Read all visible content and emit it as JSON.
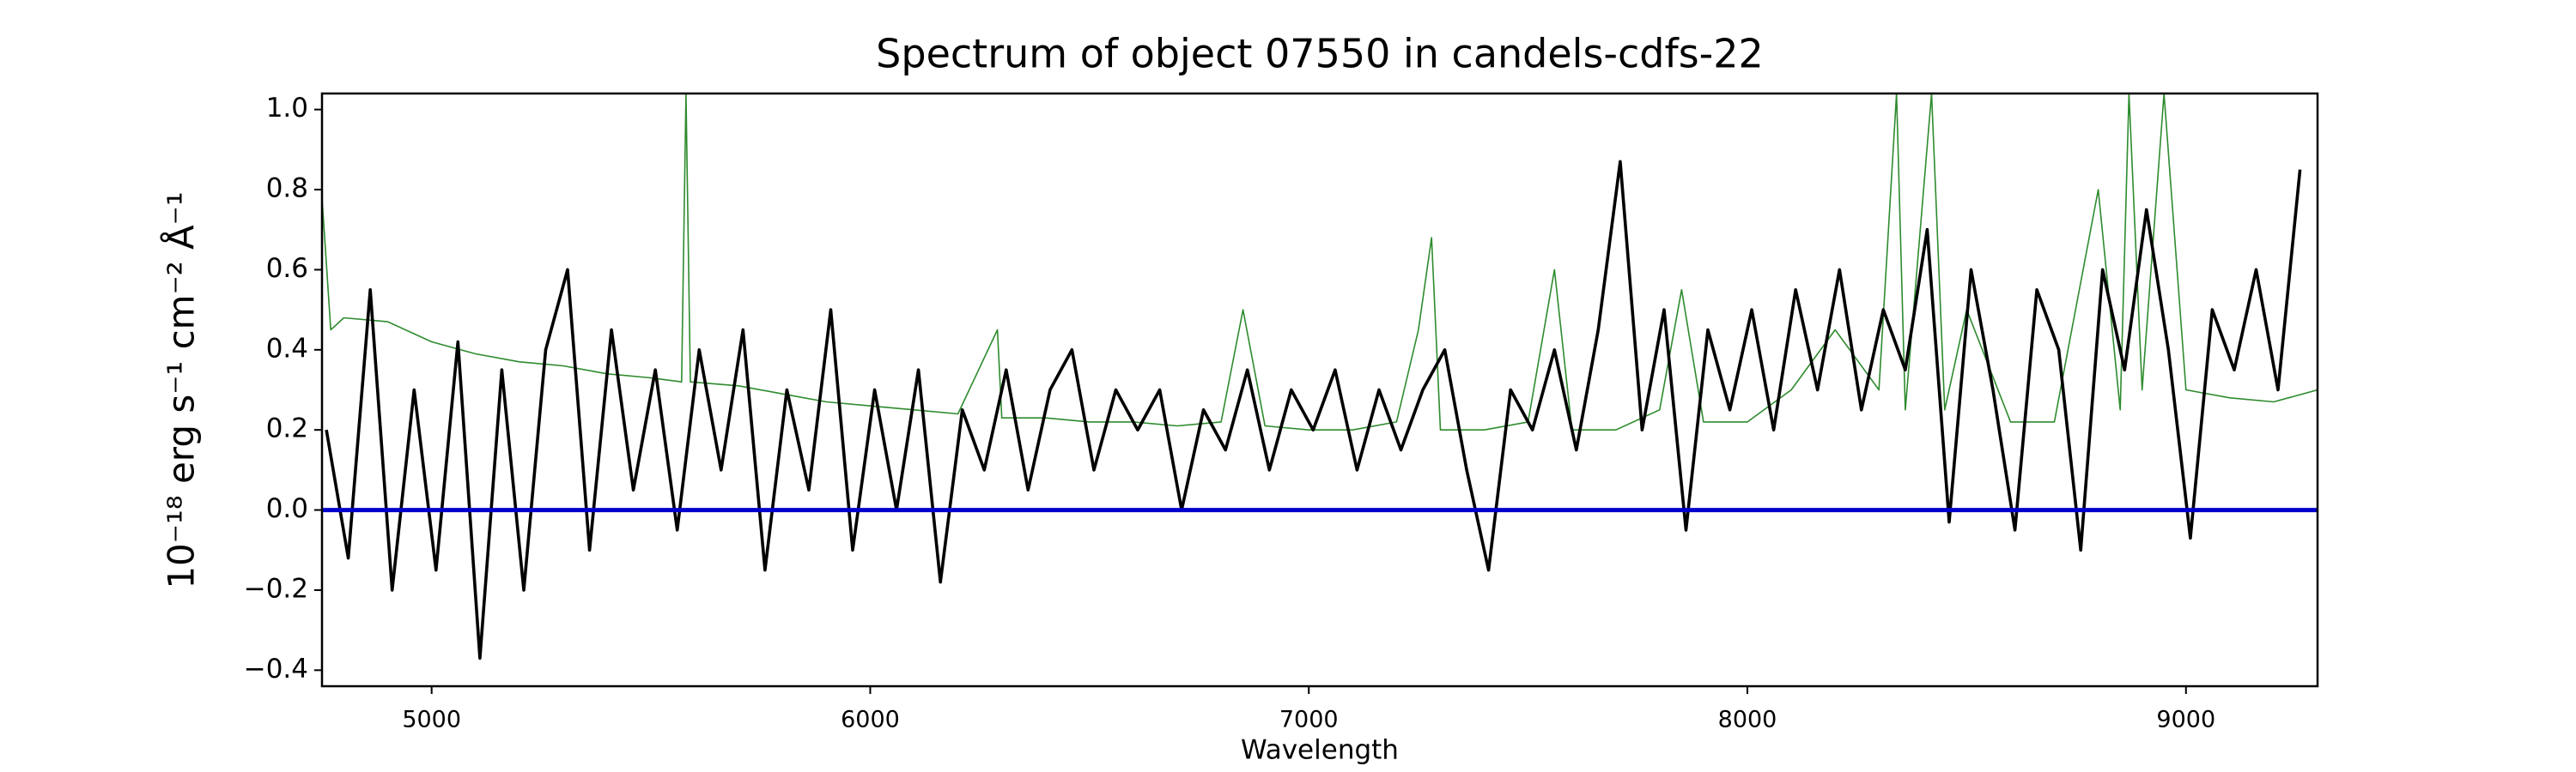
{
  "chart_data": {
    "type": "line",
    "title": "Spectrum of object 07550 in candels-cdfs-22",
    "x_label": "Wavelength",
    "y_label": "10⁻¹⁸ erg s⁻¹ cm⁻² Å⁻¹",
    "xlim": [
      4750,
      9300
    ],
    "ylim": [
      -0.44,
      1.04
    ],
    "xticks": [
      5000,
      6000,
      7000,
      8000,
      9000
    ],
    "yticks": [
      {
        "value": -0.4,
        "label": "−0.4"
      },
      {
        "value": -0.2,
        "label": "−0.2"
      },
      {
        "value": 0,
        "label": "0.0"
      },
      {
        "value": 0.2,
        "label": "0.2"
      },
      {
        "value": 0.4,
        "label": "0.4"
      },
      {
        "value": 0.6,
        "label": "0.6"
      },
      {
        "value": 0.8,
        "label": "0.8"
      },
      {
        "value": 1,
        "label": "1.0"
      }
    ],
    "grid": false,
    "series": [
      {
        "color": "#2e8b2e",
        "width": 1.6,
        "x": [
          4750,
          4770,
          4800,
          4900,
          5000,
          5100,
          5200,
          5300,
          5400,
          5500,
          5570,
          5580,
          5590,
          5700,
          5800,
          5900,
          6000,
          6100,
          6200,
          6290,
          6300,
          6400,
          6500,
          6600,
          6700,
          6800,
          6850,
          6900,
          7000,
          7100,
          7200,
          7250,
          7280,
          7300,
          7400,
          7500,
          7560,
          7600,
          7700,
          7800,
          7850,
          7900,
          8000,
          8100,
          8200,
          8300,
          8340,
          8360,
          8420,
          8450,
          8500,
          8600,
          8700,
          8800,
          8850,
          8870,
          8900,
          8950,
          9000,
          9100,
          9200,
          9300
        ],
        "values": [
          0.78,
          0.45,
          0.48,
          0.47,
          0.42,
          0.39,
          0.37,
          0.36,
          0.34,
          0.33,
          0.32,
          1.04,
          0.32,
          0.31,
          0.29,
          0.27,
          0.26,
          0.25,
          0.24,
          0.45,
          0.23,
          0.23,
          0.22,
          0.22,
          0.21,
          0.22,
          0.5,
          0.21,
          0.2,
          0.2,
          0.22,
          0.45,
          0.68,
          0.2,
          0.2,
          0.22,
          0.6,
          0.2,
          0.2,
          0.25,
          0.55,
          0.22,
          0.22,
          0.3,
          0.45,
          0.3,
          1.04,
          0.25,
          1.04,
          0.25,
          0.5,
          0.22,
          0.22,
          0.8,
          0.25,
          1.04,
          0.3,
          1.04,
          0.3,
          0.28,
          0.27,
          0.3
        ]
      },
      {
        "color": "#000000",
        "width": 3.6,
        "x": [
          4760,
          4810,
          4860,
          4910,
          4960,
          5010,
          5060,
          5110,
          5160,
          5210,
          5260,
          5310,
          5360,
          5410,
          5460,
          5510,
          5560,
          5610,
          5660,
          5710,
          5760,
          5810,
          5860,
          5910,
          5960,
          6010,
          6060,
          6110,
          6160,
          6210,
          6260,
          6310,
          6360,
          6410,
          6460,
          6510,
          6560,
          6610,
          6660,
          6710,
          6760,
          6810,
          6860,
          6910,
          6960,
          7010,
          7060,
          7110,
          7160,
          7210,
          7260,
          7310,
          7360,
          7410,
          7460,
          7510,
          7560,
          7610,
          7660,
          7710,
          7760,
          7810,
          7860,
          7910,
          7960,
          8010,
          8060,
          8110,
          8160,
          8210,
          8260,
          8310,
          8360,
          8410,
          8460,
          8510,
          8560,
          8610,
          8660,
          8710,
          8760,
          8810,
          8860,
          8910,
          8960,
          9010,
          9060,
          9110,
          9160,
          9210,
          9260
        ],
        "values": [
          0.2,
          -0.12,
          0.55,
          -0.2,
          0.3,
          -0.15,
          0.42,
          -0.37,
          0.35,
          -0.2,
          0.4,
          0.6,
          -0.1,
          0.45,
          0.05,
          0.35,
          -0.05,
          0.4,
          0.1,
          0.45,
          -0.15,
          0.3,
          0.05,
          0.5,
          -0.1,
          0.3,
          0.0,
          0.35,
          -0.18,
          0.25,
          0.1,
          0.35,
          0.05,
          0.3,
          0.4,
          0.1,
          0.3,
          0.2,
          0.3,
          0.0,
          0.25,
          0.15,
          0.35,
          0.1,
          0.3,
          0.2,
          0.35,
          0.1,
          0.3,
          0.15,
          0.3,
          0.4,
          0.1,
          -0.15,
          0.3,
          0.2,
          0.4,
          0.15,
          0.45,
          0.87,
          0.2,
          0.5,
          -0.05,
          0.45,
          0.25,
          0.5,
          0.2,
          0.55,
          0.3,
          0.6,
          0.25,
          0.5,
          0.35,
          0.7,
          -0.03,
          0.6,
          0.3,
          -0.05,
          0.55,
          0.4,
          -0.1,
          0.6,
          0.35,
          0.75,
          0.4,
          -0.07,
          0.5,
          0.35,
          0.6,
          0.3,
          0.85
        ]
      },
      {
        "color": "#0000cc",
        "width": 5,
        "x": [
          4750,
          9300
        ],
        "values": [
          0,
          0
        ]
      }
    ]
  }
}
